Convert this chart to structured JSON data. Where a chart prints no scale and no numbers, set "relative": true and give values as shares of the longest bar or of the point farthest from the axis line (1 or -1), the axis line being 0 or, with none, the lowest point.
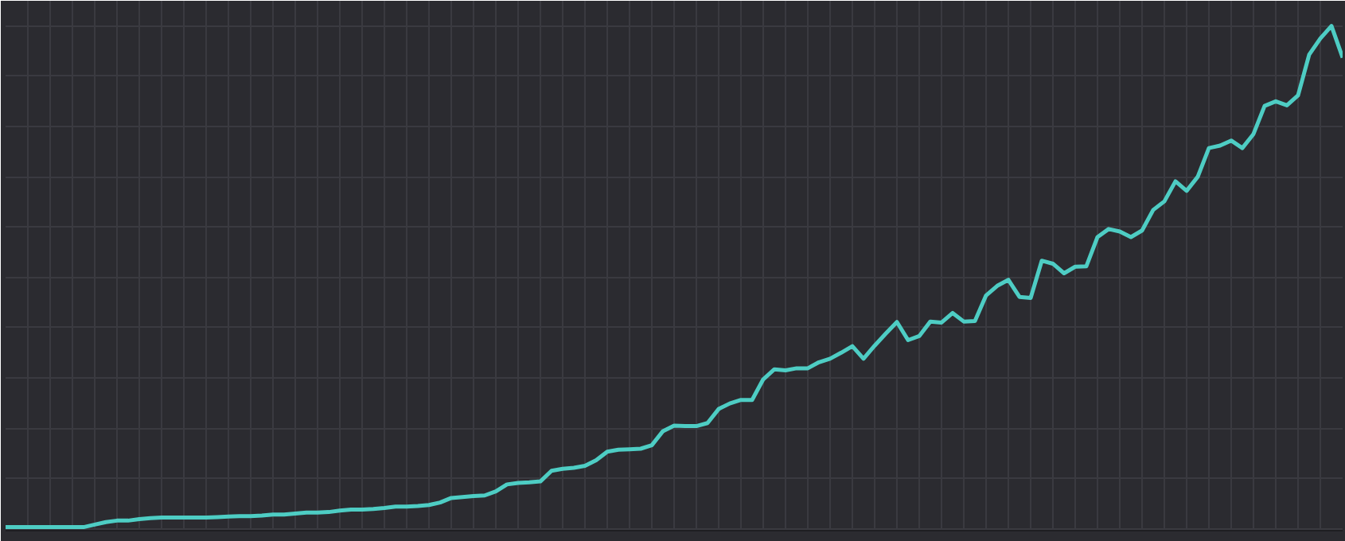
{
  "chart_data": {
    "type": "line",
    "relative": true,
    "grid": true,
    "marker": "none",
    "line_style": "solid",
    "categories": [
      null,
      null,
      null,
      null,
      null,
      null,
      null,
      null,
      null,
      null,
      null,
      null,
      null,
      null,
      null,
      null,
      null,
      null,
      null,
      null,
      null,
      null,
      null,
      null,
      null,
      null,
      null,
      null,
      null,
      null,
      null,
      null,
      null,
      null,
      null,
      null,
      null,
      null,
      null,
      null,
      null,
      null,
      null,
      null,
      null,
      null,
      null,
      null,
      null,
      null,
      null,
      null,
      null,
      null,
      null,
      null,
      null,
      null,
      null,
      null,
      null,
      null,
      null,
      null,
      null,
      null,
      null,
      null,
      null,
      null,
      null,
      null,
      null,
      null,
      null,
      null,
      null,
      null,
      null,
      null,
      null,
      null,
      null,
      null,
      null,
      null,
      null,
      null,
      null,
      null,
      null,
      null,
      null,
      null,
      null,
      null,
      null,
      null,
      null,
      null,
      null,
      null,
      null,
      null,
      null,
      null,
      null,
      null,
      null,
      null,
      null,
      null,
      null,
      null,
      null,
      null,
      null,
      null,
      null,
      null,
      null
    ],
    "series": [
      {
        "color": "#4ecdc4",
        "values": [
          0.003,
          0.003,
          0.003,
          0.003,
          0.003,
          0.003,
          0.003,
          0.003,
          0.008,
          0.013,
          0.016,
          0.016,
          0.019,
          0.021,
          0.022,
          0.022,
          0.022,
          0.022,
          0.022,
          0.023,
          0.024,
          0.025,
          0.025,
          0.026,
          0.028,
          0.028,
          0.03,
          0.032,
          0.032,
          0.033,
          0.036,
          0.038,
          0.038,
          0.039,
          0.041,
          0.044,
          0.044,
          0.045,
          0.047,
          0.052,
          0.061,
          0.063,
          0.065,
          0.066,
          0.074,
          0.088,
          0.091,
          0.092,
          0.094,
          0.115,
          0.119,
          0.121,
          0.125,
          0.136,
          0.153,
          0.157,
          0.158,
          0.159,
          0.166,
          0.194,
          0.205,
          0.204,
          0.204,
          0.21,
          0.238,
          0.249,
          0.256,
          0.256,
          0.297,
          0.317,
          0.315,
          0.319,
          0.319,
          0.331,
          0.338,
          0.35,
          0.363,
          0.338,
          0.364,
          0.388,
          0.411,
          0.375,
          0.383,
          0.412,
          0.41,
          0.429,
          0.412,
          0.413,
          0.464,
          0.483,
          0.495,
          0.461,
          0.459,
          0.533,
          0.527,
          0.508,
          0.521,
          0.522,
          0.58,
          0.596,
          0.591,
          0.58,
          0.593,
          0.634,
          0.651,
          0.691,
          0.672,
          0.7,
          0.757,
          0.762,
          0.772,
          0.757,
          0.785,
          0.841,
          0.85,
          0.842,
          0.862,
          0.943,
          0.975,
          1.0,
          0.937
        ]
      }
    ]
  }
}
